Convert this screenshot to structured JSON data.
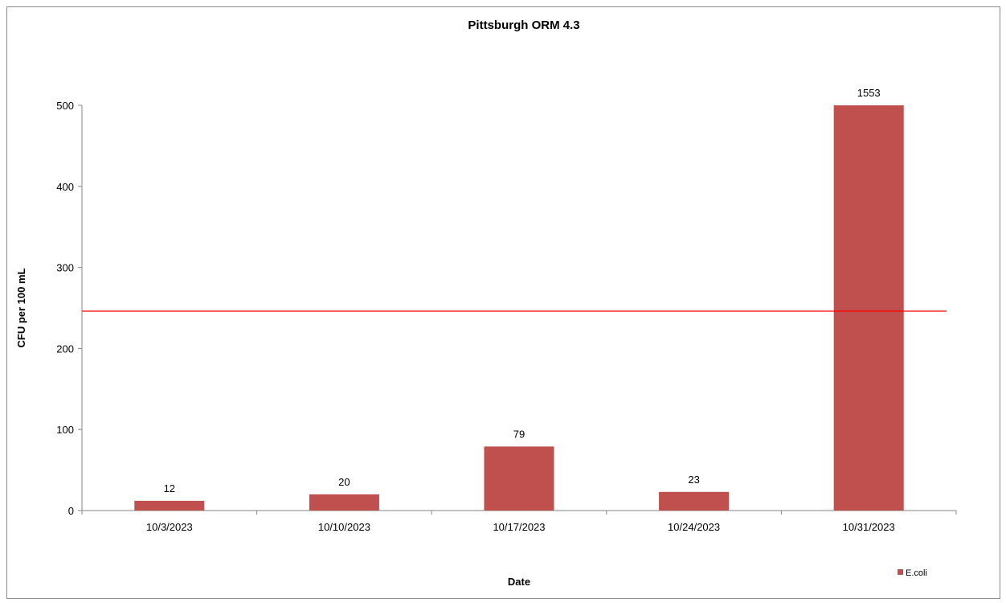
{
  "chart_data": {
    "type": "bar",
    "title": "Pittsburgh ORM 4.3",
    "xlabel": "Date",
    "ylabel": "CFU per 100 mL",
    "categories": [
      "10/3/2023",
      "10/10/2023",
      "10/17/2023",
      "10/24/2023",
      "10/31/2023"
    ],
    "series": [
      {
        "name": "E.coli",
        "values": [
          12,
          20,
          79,
          23,
          1553
        ],
        "data_labels": [
          "12",
          "20",
          "79",
          "23",
          "1553"
        ],
        "color": "#c0504d"
      }
    ],
    "ylim": [
      0,
      500
    ],
    "yticks": [
      0,
      100,
      200,
      300,
      400,
      500
    ],
    "reference_line": {
      "value": 246,
      "color": "#ff0000"
    },
    "grid": false,
    "legend_position": "bottom-right"
  }
}
